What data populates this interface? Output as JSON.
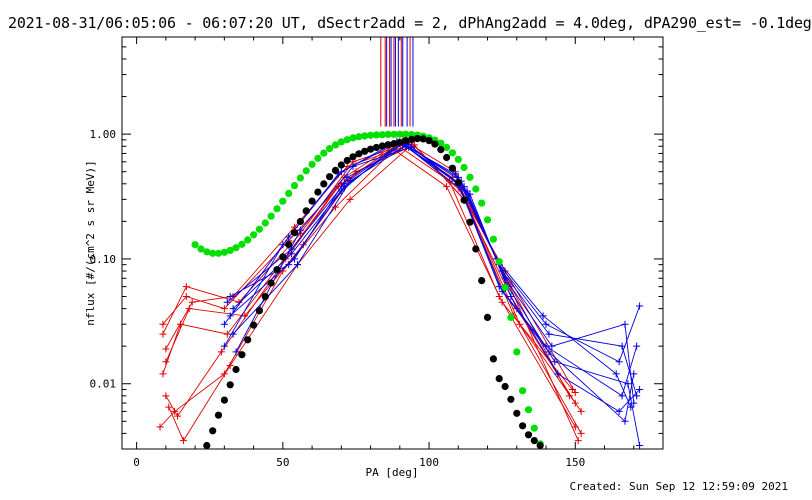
{
  "chart_data": {
    "type": "scatter",
    "title": "2021-08-31/06:05:06 - 06:07:20 UT, dSectr2add = 2, dPhAng2add = 4.0deg, dPA290_est= -0.1deg",
    "xlabel": "PA [deg]",
    "ylabel": "nflux [#/(cm^2 s sr MeV)]",
    "xlim": [
      -5,
      180
    ],
    "ylim": [
      0.003,
      6.0
    ],
    "yscale": "log",
    "x_ticks": [
      0,
      50,
      100,
      150
    ],
    "y_ticks": [
      0.01,
      0.1,
      1.0
    ],
    "x_tick_labels": [
      "0",
      "50",
      "100",
      "150"
    ],
    "y_tick_labels": [
      "0.01",
      "0.10",
      "1.00"
    ],
    "grid": false,
    "footer": "Created: Sun Sep 12 12:59:09 2021",
    "vertical_markers": {
      "red": [
        83.5,
        85.0,
        86.5,
        88.0,
        90.5,
        93.5
      ],
      "blue": [
        85.5,
        87.0,
        88.5,
        89.5,
        91.0,
        92.5,
        94.5
      ],
      "from_y": 1.15,
      "colors": {
        "red": "#e00000",
        "blue": "#0000e0"
      }
    },
    "series": [
      {
        "style": "red-lines",
        "color": "#e00000",
        "lines": [
          [
            [
              9,
              0.03
            ],
            [
              17,
              0.05
            ],
            [
              30,
              0.04
            ],
            [
              52,
              0.14
            ],
            [
              70,
              0.4
            ],
            [
              90,
              0.85
            ],
            [
              108,
              0.45
            ],
            [
              126,
              0.08
            ],
            [
              150,
              0.0085
            ]
          ],
          [
            [
              10,
              0.019
            ],
            [
              19,
              0.045
            ],
            [
              33,
              0.05
            ],
            [
              54,
              0.18
            ],
            [
              72,
              0.55
            ],
            [
              92,
              0.8
            ],
            [
              110,
              0.4
            ],
            [
              128,
              0.06
            ],
            [
              148,
              0.008
            ]
          ],
          [
            [
              9,
              0.012
            ],
            [
              15,
              0.03
            ],
            [
              31,
              0.025
            ],
            [
              53,
              0.12
            ],
            [
              71,
              0.45
            ],
            [
              91,
              0.9
            ],
            [
              109,
              0.5
            ],
            [
              127,
              0.065
            ],
            [
              151,
              0.0035
            ]
          ],
          [
            [
              10,
              0.008
            ],
            [
              14,
              0.0055
            ],
            [
              29,
              0.018
            ],
            [
              51,
              0.1
            ],
            [
              69,
              0.38
            ],
            [
              89,
              0.82
            ],
            [
              107,
              0.42
            ],
            [
              124,
              0.05
            ],
            [
              150,
              0.0045
            ]
          ],
          [
            [
              11,
              0.0065
            ],
            [
              16,
              0.0035
            ],
            [
              32,
              0.014
            ],
            [
              55,
              0.09
            ],
            [
              73,
              0.3
            ],
            [
              93,
              0.78
            ],
            [
              111,
              0.35
            ],
            [
              129,
              0.035
            ],
            [
              152,
              0.006
            ]
          ],
          [
            [
              8,
              0.0045
            ],
            [
              13,
              0.006
            ],
            [
              30,
              0.012
            ],
            [
              50,
              0.08
            ],
            [
              68,
              0.26
            ],
            [
              88,
              0.75
            ],
            [
              106,
              0.38
            ],
            [
              125,
              0.045
            ],
            [
              149,
              0.009
            ]
          ],
          [
            [
              9,
              0.025
            ],
            [
              17,
              0.06
            ],
            [
              35,
              0.045
            ],
            [
              56,
              0.16
            ],
            [
              74,
              0.6
            ],
            [
              94,
              0.86
            ],
            [
              112,
              0.3
            ],
            [
              130,
              0.04
            ],
            [
              150,
              0.007
            ]
          ],
          [
            [
              10,
              0.015
            ],
            [
              18,
              0.04
            ],
            [
              37,
              0.035
            ],
            [
              57,
              0.13
            ],
            [
              75,
              0.5
            ],
            [
              95,
              0.82
            ],
            [
              113,
              0.28
            ],
            [
              131,
              0.03
            ],
            [
              152,
              0.004
            ]
          ]
        ]
      },
      {
        "style": "blue-lines",
        "color": "#0000e0",
        "lines": [
          [
            [
              30,
              0.03
            ],
            [
              52,
              0.15
            ],
            [
              70,
              0.5
            ],
            [
              90,
              0.87
            ],
            [
              110,
              0.45
            ],
            [
              124,
              0.09
            ],
            [
              140,
              0.03
            ],
            [
              165,
              0.015
            ],
            [
              172,
              0.042
            ]
          ],
          [
            [
              31,
              0.045
            ],
            [
              53,
              0.12
            ],
            [
              71,
              0.4
            ],
            [
              91,
              0.85
            ],
            [
              111,
              0.42
            ],
            [
              125,
              0.08
            ],
            [
              141,
              0.025
            ],
            [
              166,
              0.02
            ],
            [
              171,
              0.008
            ]
          ],
          [
            [
              32,
              0.035
            ],
            [
              54,
              0.1
            ],
            [
              72,
              0.45
            ],
            [
              92,
              0.8
            ],
            [
              112,
              0.38
            ],
            [
              126,
              0.07
            ],
            [
              142,
              0.02
            ],
            [
              167,
              0.03
            ],
            [
              170,
              0.007
            ]
          ],
          [
            [
              33,
              0.025
            ],
            [
              55,
              0.09
            ],
            [
              73,
              0.42
            ],
            [
              93,
              0.83
            ],
            [
              113,
              0.35
            ],
            [
              127,
              0.06
            ],
            [
              143,
              0.015
            ],
            [
              168,
              0.01
            ],
            [
              172,
              0.0032
            ]
          ],
          [
            [
              30,
              0.02
            ],
            [
              50,
              0.13
            ],
            [
              69,
              0.48
            ],
            [
              89,
              0.88
            ],
            [
              109,
              0.48
            ],
            [
              123,
              0.1
            ],
            [
              139,
              0.035
            ],
            [
              164,
              0.012
            ],
            [
              169,
              0.0065
            ]
          ],
          [
            [
              34,
              0.018
            ],
            [
              56,
              0.17
            ],
            [
              74,
              0.55
            ],
            [
              94,
              0.79
            ],
            [
              114,
              0.33
            ],
            [
              128,
              0.05
            ],
            [
              144,
              0.012
            ],
            [
              165,
              0.006
            ],
            [
              172,
              0.009
            ]
          ],
          [
            [
              32,
              0.05
            ],
            [
              52,
              0.09
            ],
            [
              70,
              0.35
            ],
            [
              90,
              0.86
            ],
            [
              110,
              0.4
            ],
            [
              124,
              0.06
            ],
            [
              140,
              0.02
            ],
            [
              166,
              0.008
            ],
            [
              171,
              0.02
            ]
          ],
          [
            [
              33,
              0.04
            ],
            [
              53,
              0.11
            ],
            [
              71,
              0.38
            ],
            [
              91,
              0.84
            ],
            [
              111,
              0.36
            ],
            [
              125,
              0.055
            ],
            [
              141,
              0.018
            ],
            [
              167,
              0.005
            ],
            [
              170,
              0.012
            ]
          ]
        ]
      },
      {
        "style": "green-dots",
        "color": "#00e000",
        "points": [
          [
            20,
            0.13
          ],
          [
            22,
            0.12
          ],
          [
            24,
            0.114
          ],
          [
            26,
            0.111
          ],
          [
            28,
            0.111
          ],
          [
            30,
            0.113
          ],
          [
            32,
            0.117
          ],
          [
            34,
            0.123
          ],
          [
            36,
            0.131
          ],
          [
            38,
            0.142
          ],
          [
            40,
            0.156
          ],
          [
            42,
            0.173
          ],
          [
            44,
            0.194
          ],
          [
            46,
            0.22
          ],
          [
            48,
            0.252
          ],
          [
            50,
            0.29
          ],
          [
            52,
            0.335
          ],
          [
            54,
            0.387
          ],
          [
            56,
            0.445
          ],
          [
            58,
            0.508
          ],
          [
            60,
            0.573
          ],
          [
            62,
            0.64
          ],
          [
            64,
            0.704
          ],
          [
            66,
            0.765
          ],
          [
            68,
            0.82
          ],
          [
            70,
            0.866
          ],
          [
            72,
            0.903
          ],
          [
            74,
            0.932
          ],
          [
            76,
            0.953
          ],
          [
            78,
            0.968
          ],
          [
            80,
            0.978
          ],
          [
            82,
            0.985
          ],
          [
            84,
            0.99
          ],
          [
            86,
            0.994
          ],
          [
            88,
            0.997
          ],
          [
            90,
            0.999
          ],
          [
            92,
            0.998
          ],
          [
            94,
            0.993
          ],
          [
            96,
            0.982
          ],
          [
            98,
            0.963
          ],
          [
            100,
            0.935
          ],
          [
            102,
            0.896
          ],
          [
            104,
            0.845
          ],
          [
            106,
            0.782
          ],
          [
            108,
            0.709
          ],
          [
            110,
            0.627
          ],
          [
            112,
            0.54
          ],
          [
            114,
            0.451
          ],
          [
            116,
            0.363
          ],
          [
            118,
            0.28
          ],
          [
            120,
            0.206
          ],
          [
            122,
            0.144
          ],
          [
            124,
            0.095
          ],
          [
            126,
            0.059
          ],
          [
            128,
            0.034
          ],
          [
            130,
            0.018
          ],
          [
            132,
            0.0088
          ],
          [
            134,
            0.0062
          ],
          [
            136,
            0.0044
          ],
          [
            138,
            0.0033
          ]
        ]
      },
      {
        "style": "black-dots",
        "color": "#000000",
        "points": [
          [
            24,
            0.0032
          ],
          [
            26,
            0.0042
          ],
          [
            28,
            0.0056
          ],
          [
            30,
            0.0074
          ],
          [
            32,
            0.0098
          ],
          [
            34,
            0.013
          ],
          [
            36,
            0.0171
          ],
          [
            38,
            0.0225
          ],
          [
            40,
            0.0295
          ],
          [
            42,
            0.0385
          ],
          [
            44,
            0.0499
          ],
          [
            46,
            0.0642
          ],
          [
            48,
            0.082
          ],
          [
            50,
            0.1039
          ],
          [
            52,
            0.1305
          ],
          [
            54,
            0.1623
          ],
          [
            56,
            0.1996
          ],
          [
            58,
            0.2425
          ],
          [
            60,
            0.2906
          ],
          [
            62,
            0.3432
          ],
          [
            64,
            0.3989
          ],
          [
            66,
            0.4559
          ],
          [
            68,
            0.5122
          ],
          [
            70,
            0.5655
          ],
          [
            72,
            0.6143
          ],
          [
            74,
            0.6578
          ],
          [
            76,
            0.6958
          ],
          [
            78,
            0.7285
          ],
          [
            80,
            0.7566
          ],
          [
            82,
            0.781
          ],
          [
            84,
            0.8026
          ],
          [
            86,
            0.8222
          ],
          [
            88,
            0.8399
          ],
          [
            90,
            0.856
          ],
          [
            92,
            0.885
          ],
          [
            94,
            0.908
          ],
          [
            96,
            0.92
          ],
          [
            98,
            0.915
          ],
          [
            100,
            0.887
          ],
          [
            102,
            0.832
          ],
          [
            104,
            0.752
          ],
          [
            106,
            0.65
          ],
          [
            108,
            0.533
          ],
          [
            110,
            0.411
          ],
          [
            112,
            0.296
          ],
          [
            114,
            0.197
          ],
          [
            116,
            0.12
          ],
          [
            118,
            0.067
          ],
          [
            120,
            0.034
          ],
          [
            122,
            0.0158
          ],
          [
            124,
            0.011
          ],
          [
            126,
            0.0095
          ],
          [
            128,
            0.0075
          ],
          [
            130,
            0.0058
          ],
          [
            132,
            0.0046
          ],
          [
            134,
            0.0039
          ],
          [
            136,
            0.0035
          ],
          [
            138,
            0.0032
          ]
        ]
      }
    ]
  }
}
